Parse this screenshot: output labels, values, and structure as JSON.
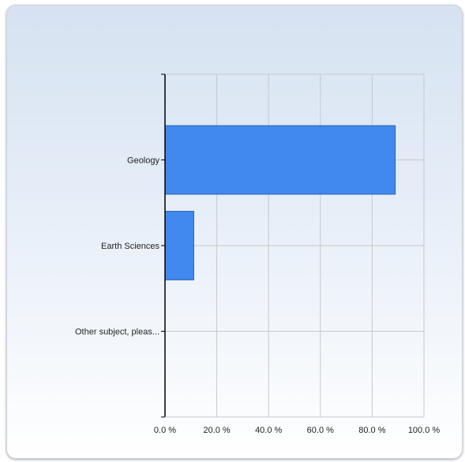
{
  "colors": {
    "bar": "#4189ee",
    "bar_border": "#2a5fae",
    "grid": "#c8c8c8",
    "axis": "#000000",
    "panel_top": "#d6e2f1",
    "panel_bottom": "#ffffff"
  },
  "chart_data": {
    "type": "bar",
    "orientation": "horizontal",
    "categories": [
      "Geology",
      "Earth Sciences",
      "Other subject, pleas..."
    ],
    "series": [
      {
        "values": [
          88.9,
          11.1,
          0.0
        ]
      }
    ],
    "x_ticks": [
      "0.0 %",
      "20.0 %",
      "40.0 %",
      "60.0 %",
      "80.0 %",
      "100.0 %"
    ],
    "xlim": [
      0,
      100
    ],
    "grid": true,
    "legend": "none",
    "title": "",
    "xlabel": "",
    "ylabel": ""
  }
}
